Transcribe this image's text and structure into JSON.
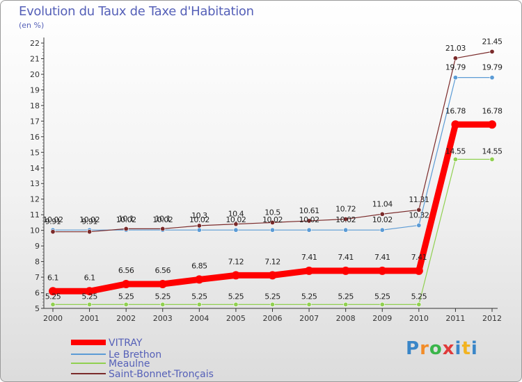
{
  "title": "Evolution du Taux de Taxe d'Habitation",
  "subtitle": "(en %)",
  "logo": "Proxiti",
  "chart_data": {
    "type": "line",
    "x": [
      "2000",
      "2001",
      "2002",
      "2003",
      "2004",
      "2005",
      "2006",
      "2007",
      "2008",
      "2009",
      "2010",
      "2011",
      "2012"
    ],
    "ylim": [
      5,
      22
    ],
    "yticks": [
      5,
      6,
      7,
      8,
      9,
      10,
      11,
      12,
      13,
      14,
      15,
      16,
      17,
      18,
      19,
      20,
      21,
      22
    ],
    "grid": false,
    "legend_position": "bottom-left",
    "series": [
      {
        "name": "VITRAY",
        "color": "#ff0000",
        "values": [
          6.1,
          6.1,
          6.56,
          6.56,
          6.85,
          7.12,
          7.12,
          7.41,
          7.41,
          7.41,
          7.41,
          16.78,
          16.78
        ],
        "labels": [
          "6.1",
          "6.1",
          "6.56",
          "6.56",
          "6.85",
          "7.12",
          "7.12",
          "7.41",
          "7.41",
          "7.41",
          "7.41",
          "16.78",
          "16.78"
        ]
      },
      {
        "name": "Le Brethon",
        "color": "#5b9bd5",
        "values": [
          10.02,
          10.02,
          10.02,
          10.02,
          10.02,
          10.02,
          10.02,
          10.02,
          10.02,
          10.02,
          10.32,
          19.79,
          19.79
        ],
        "labels": [
          "10.02",
          "10.02",
          "10.02",
          "10.02",
          "10.02",
          "10.02",
          "10.02",
          "10.02",
          "10.02",
          "10.02",
          "10.32",
          "19.79",
          "19.79"
        ]
      },
      {
        "name": "Meaulne",
        "color": "#90d050",
        "values": [
          5.25,
          5.25,
          5.25,
          5.25,
          5.25,
          5.25,
          5.25,
          5.25,
          5.25,
          5.25,
          5.25,
          14.55,
          14.55
        ],
        "labels": [
          "5.25",
          "5.25",
          "5.25",
          "5.25",
          "5.25",
          "5.25",
          "5.25",
          "5.25",
          "5.25",
          "5.25",
          "5.25",
          "14.55",
          "14.55"
        ]
      },
      {
        "name": "Saint-Bonnet-Tronçais",
        "color": "#7a2a2a",
        "values": [
          9.91,
          9.91,
          10.1,
          10.1,
          10.3,
          10.4,
          10.5,
          10.61,
          10.72,
          11.04,
          11.31,
          21.03,
          21.45
        ],
        "labels": [
          "9.91",
          "9.91",
          "10.1",
          "10.1",
          "10.3",
          "10.4",
          "10.5",
          "10.61",
          "10.72",
          "11.04",
          "11.31",
          "21.03",
          "21.45"
        ]
      }
    ]
  }
}
